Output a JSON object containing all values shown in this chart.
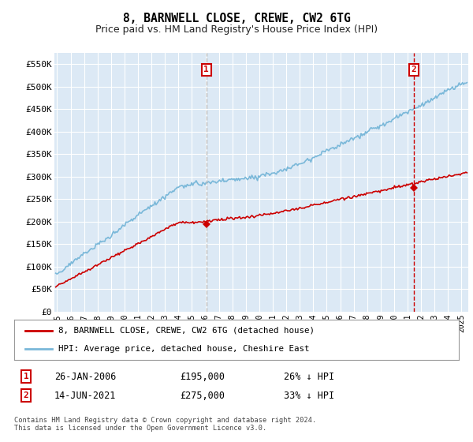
{
  "title": "8, BARNWELL CLOSE, CREWE, CW2 6TG",
  "subtitle": "Price paid vs. HM Land Registry's House Price Index (HPI)",
  "ylim": [
    0,
    575000
  ],
  "yticks": [
    0,
    50000,
    100000,
    150000,
    200000,
    250000,
    300000,
    350000,
    400000,
    450000,
    500000,
    550000
  ],
  "ytick_labels": [
    "£0",
    "£50K",
    "£100K",
    "£150K",
    "£200K",
    "£250K",
    "£300K",
    "£350K",
    "£400K",
    "£450K",
    "£500K",
    "£550K"
  ],
  "background_color": "#dce9f5",
  "grid_color": "#ffffff",
  "sale1_date_x": 2006.07,
  "sale1_price": 195000,
  "sale2_date_x": 2021.45,
  "sale2_price": 275000,
  "hpi_color": "#7ab8d9",
  "price_color": "#cc0000",
  "sale1_vline_color": "#bbbbbb",
  "sale2_vline_color": "#cc0000",
  "legend_line1": "8, BARNWELL CLOSE, CREWE, CW2 6TG (detached house)",
  "legend_line2": "HPI: Average price, detached house, Cheshire East",
  "annotation1_date": "26-JAN-2006",
  "annotation1_price": "£195,000",
  "annotation1_hpi": "26% ↓ HPI",
  "annotation2_date": "14-JUN-2021",
  "annotation2_price": "£275,000",
  "annotation2_hpi": "33% ↓ HPI",
  "footer": "Contains HM Land Registry data © Crown copyright and database right 2024.\nThis data is licensed under the Open Government Licence v3.0.",
  "xmin": 1994.8,
  "xmax": 2025.5,
  "hpi_seed": 12,
  "price_seed": 34
}
